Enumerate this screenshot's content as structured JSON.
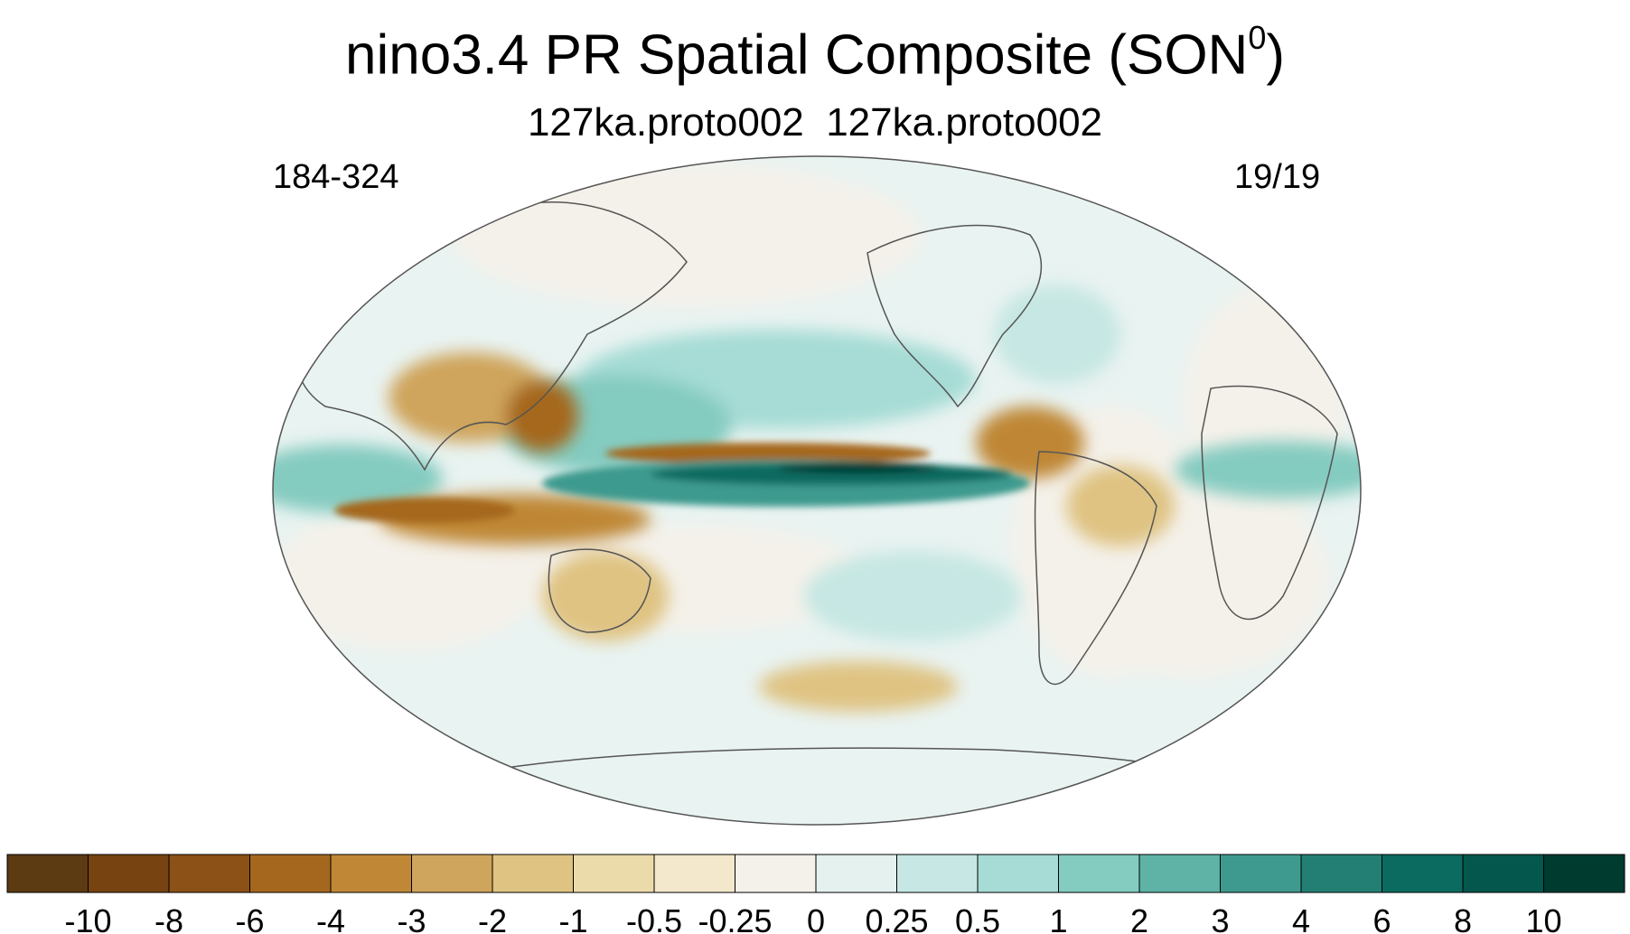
{
  "title": {
    "main": "nino3.4 PR Spatial Composite (SON",
    "superscript": "0",
    "close": ")"
  },
  "subtitle": "127ka.proto002  127ka.proto002",
  "left_label": "184-324",
  "right_label": "19/19",
  "colorbar": {
    "colors": [
      "#5c3a12",
      "#774310",
      "#8c5116",
      "#a5671e",
      "#bf8736",
      "#cfa45c",
      "#dfc382",
      "#ecdbaa",
      "#f3e8cb",
      "#f4f1ea",
      "#e4f1ef",
      "#c6e7e3",
      "#a6dcd5",
      "#84cbc0",
      "#5fb2a6",
      "#3e9a8e",
      "#237f74",
      "#0b6b60",
      "#03574c",
      "#003b30"
    ],
    "labels": [
      "-10",
      "-8",
      "-6",
      "-4",
      "-3",
      "-2",
      "-1",
      "-0.5",
      "-0.25",
      "0",
      "0.25",
      "0.5",
      "1",
      "2",
      "3",
      "4",
      "6",
      "8",
      "10"
    ]
  },
  "map": {
    "background_color": "#e9f3f1",
    "continent_outline_color": "#555555"
  }
}
